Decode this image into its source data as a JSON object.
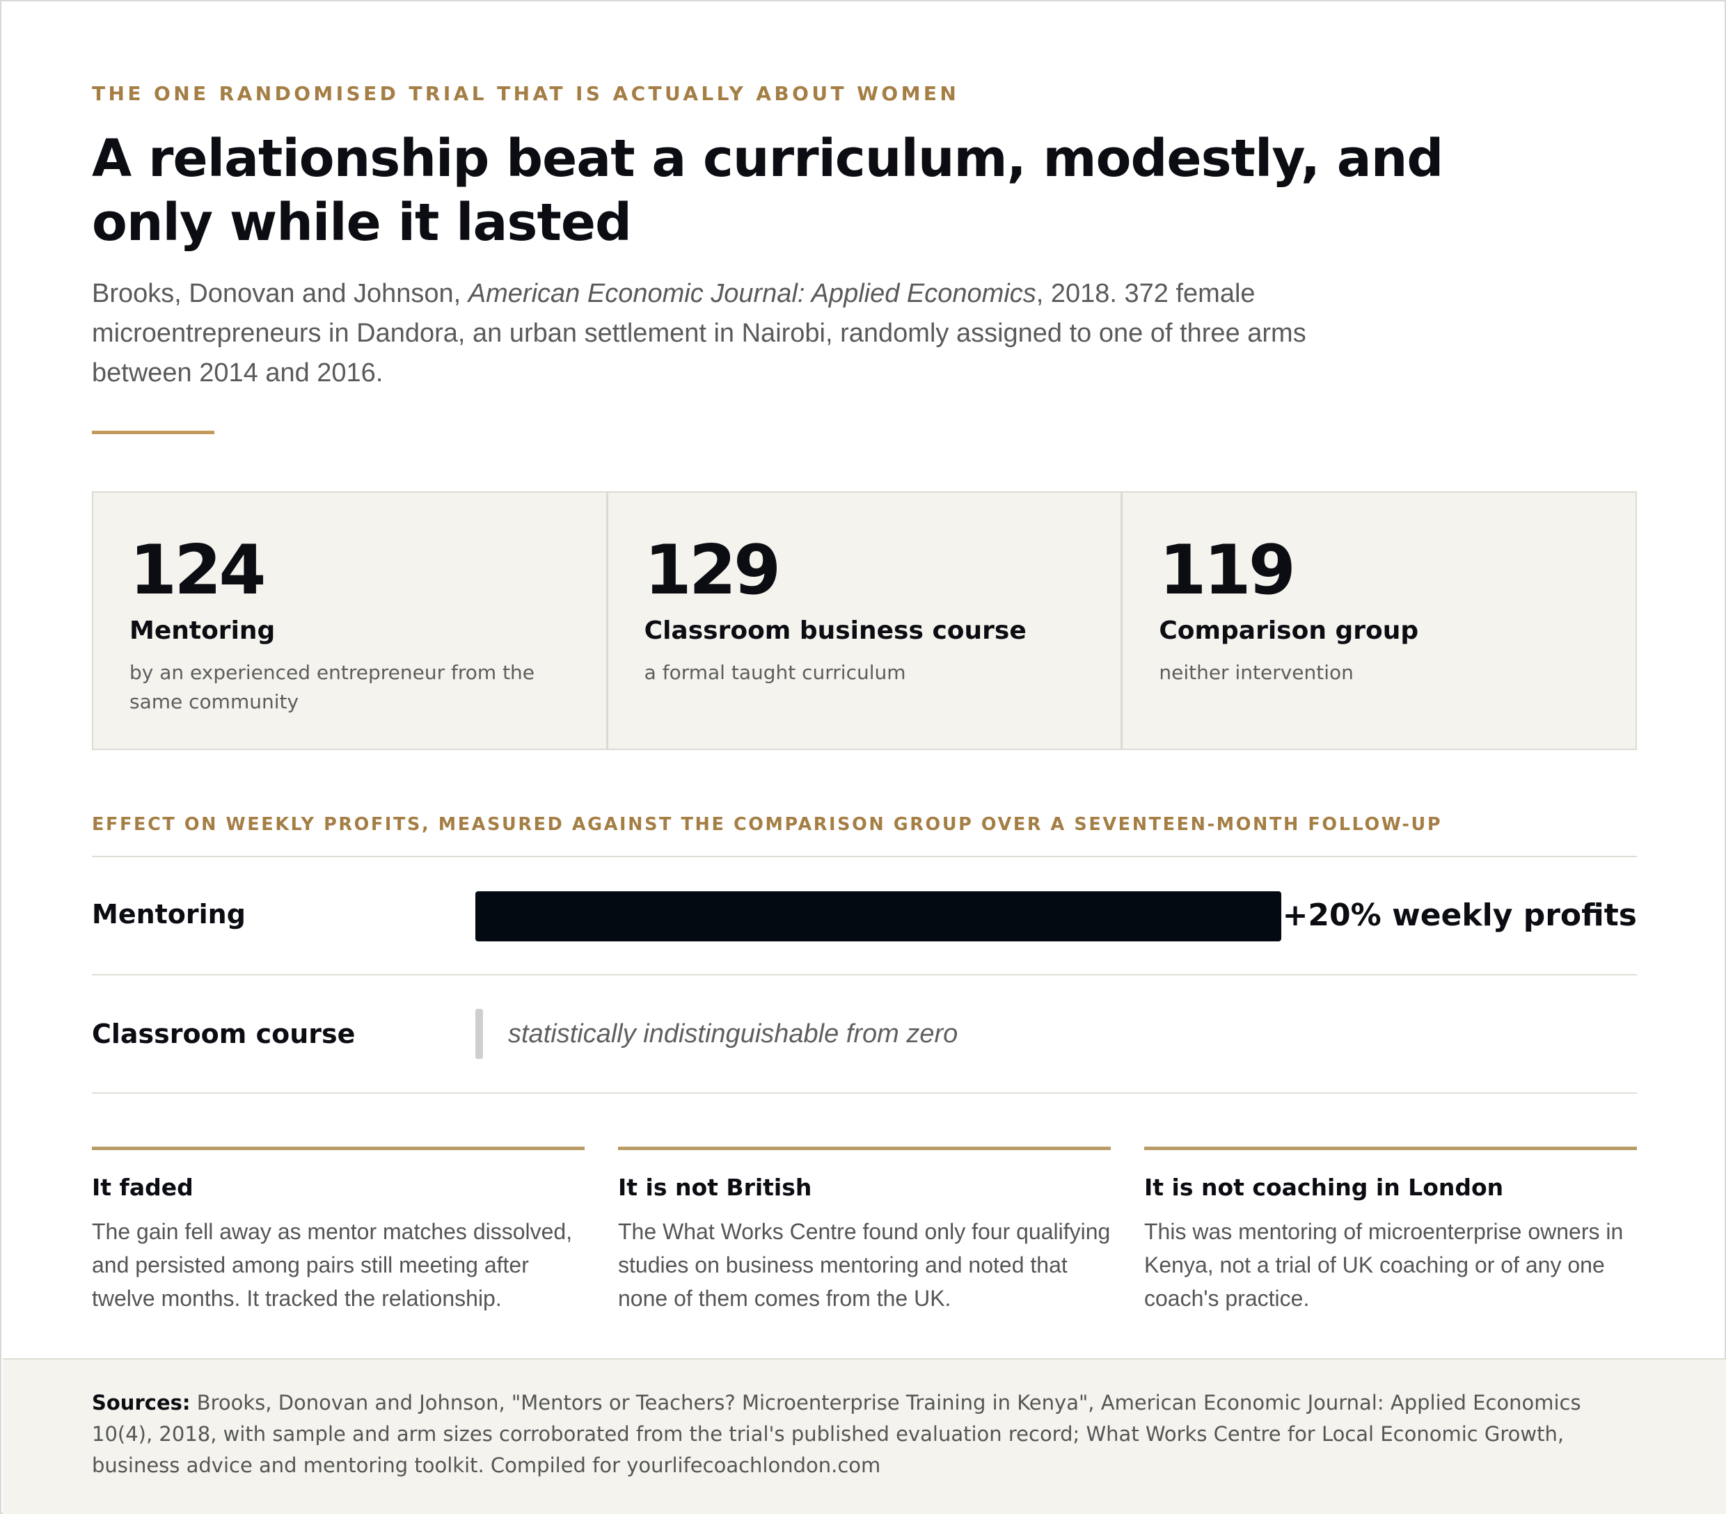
{
  "header": {
    "eyebrow": "THE ONE RANDOMISED TRIAL THAT IS ACTUALLY ABOUT WOMEN",
    "title": "A relationship beat a curriculum, modestly, and only while it lasted",
    "subtitle_authors": "Brooks, Donovan and Johnson, ",
    "subtitle_journal": "American Economic Journal: Applied Economics",
    "subtitle_rest": ", 2018. 372 female microentrepreneurs in Dandora, an urban settlement in Nairobi, randomly assigned to one of three arms between 2014 and 2016."
  },
  "arms": [
    {
      "number": "124",
      "label": "Mentoring",
      "description": "by an experienced entrepreneur from the same community"
    },
    {
      "number": "129",
      "label": "Classroom business course",
      "description": "a formal taught curriculum"
    },
    {
      "number": "119",
      "label": "Comparison group",
      "description": "neither intervention"
    }
  ],
  "chart_data": {
    "type": "bar",
    "title": "EFFECT ON WEEKLY PROFITS, MEASURED AGAINST THE COMPARISON GROUP OVER A SEVENTEEN-MONTH FOLLOW-UP",
    "categories": [
      "Mentoring",
      "Classroom course"
    ],
    "values": [
      20,
      0
    ],
    "value_labels": [
      "+20% weekly profits",
      "statistically indistinguishable from zero"
    ],
    "unit": "%",
    "xlim": [
      0,
      20
    ],
    "colors": {
      "bar": "#040a12",
      "zero_marker": "#cfcfcf"
    }
  },
  "notes": [
    {
      "title": "It faded",
      "body": "The gain fell away as mentor matches dissolved, and persisted among pairs still meeting after twelve months. It tracked the relationship."
    },
    {
      "title": "It is not British",
      "body": "The What Works Centre found only four qualifying studies on business mentoring and noted that none of them comes from the UK."
    },
    {
      "title": "It is not coaching in London",
      "body": "This was mentoring of microenterprise owners in Kenya, not a trial of UK coaching or of any one coach's practice."
    }
  ],
  "footer": {
    "label": "Sources:",
    "text": " Brooks, Donovan and Johnson, \"Mentors or Teachers? Microenterprise Training in Kenya\", American Economic Journal: Applied Economics 10(4), 2018, with sample and arm sizes corroborated from the trial's published evaluation record; What Works Centre for Local Economic Growth, business advice and mentoring toolkit. Compiled for yourlifecoachlondon.com"
  },
  "colors": {
    "accent": "#a47e44",
    "ink": "#0b0d12",
    "panel": "#f4f3ee"
  }
}
